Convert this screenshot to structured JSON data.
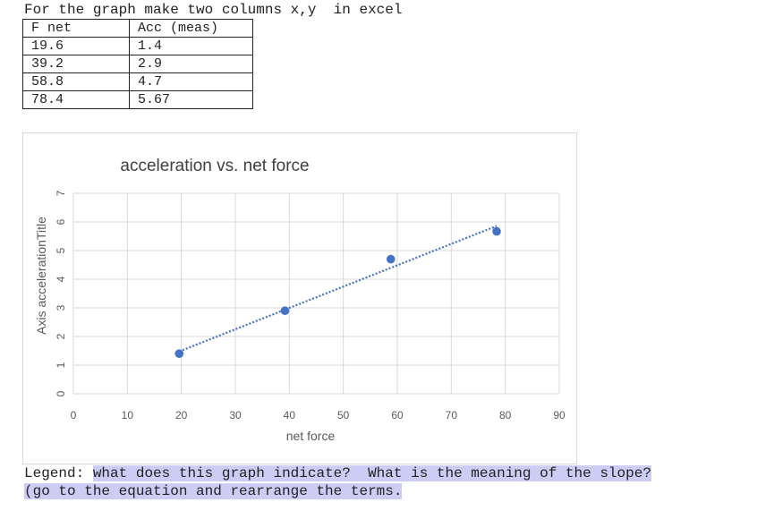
{
  "intro": "For the graph make two columns x,y  in excel",
  "table": {
    "headers": [
      "F net",
      "Acc (meas)"
    ],
    "rows": [
      [
        "19.6",
        "1.4"
      ],
      [
        "39.2",
        "2.9"
      ],
      [
        "58.8",
        "4.7"
      ],
      [
        "78.4",
        "5.67"
      ]
    ]
  },
  "chart_data": {
    "type": "scatter",
    "title": "acceleration vs. net force",
    "xlabel": "net force",
    "ylabel": "Axis accelerationTitle",
    "x": [
      19.6,
      39.2,
      58.8,
      78.4
    ],
    "y": [
      1.4,
      2.9,
      4.7,
      5.67
    ],
    "xlim": [
      0,
      90
    ],
    "ylim": [
      0,
      7
    ],
    "xticks": [
      0,
      10,
      20,
      30,
      40,
      50,
      60,
      70,
      80,
      90
    ],
    "yticks": [
      0,
      1,
      2,
      3,
      4,
      5,
      6,
      7
    ],
    "trendline": "linear dotted",
    "grid": true,
    "point_color": "#4472c4"
  },
  "legend_prompt": {
    "label": "Legend:",
    "line1": "what does this graph indicate?  What is the meaning of the slope?",
    "line2": "(go to the equation and rearrange the terms."
  }
}
